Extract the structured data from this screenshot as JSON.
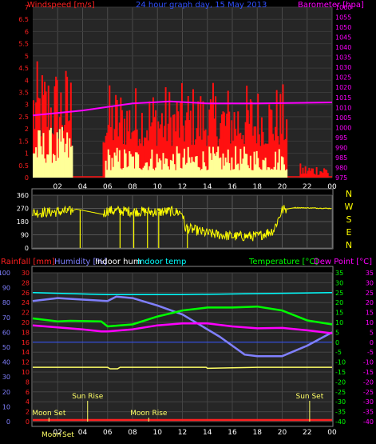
{
  "colors": {
    "background": "#000000",
    "wind_label": "#ff2020",
    "title": "#3050ff",
    "baro": "#ff00ff",
    "dir_axis": "#ffff00",
    "rain": "#ff2020",
    "humidity": "#8080ff",
    "indoor_hum": "#ffffff",
    "indoor_temp": "#00ffff",
    "temperature": "#00ff00",
    "dewpoint": "#ff00ff",
    "panel_bg": "#2a2a2a",
    "grid": "#555555"
  },
  "chart_data": [
    {
      "type": "area",
      "title": "24 hour graph day, 15 May 2013",
      "left_axis_label": "Windspeed [m/s]",
      "right_axis_label": "Barometer [hpa]",
      "x_ticks": [
        "02",
        "04",
        "06",
        "08",
        "10",
        "12",
        "14",
        "16",
        "18",
        "20",
        "22",
        "00"
      ],
      "left_ticks": [
        "0",
        "0.5",
        "1",
        "1.5",
        "2",
        "2.5",
        "3",
        "3.5",
        "4",
        "4.5",
        "5",
        "5.5",
        "6",
        "6.5",
        "7"
      ],
      "right_ticks": [
        "975",
        "980",
        "985",
        "990",
        "995",
        "1000",
        "1005",
        "1010",
        "1015",
        "1020",
        "1025",
        "1030",
        "1035",
        "1040",
        "1045",
        "1050",
        "1055",
        "1060"
      ],
      "ylim_left": [
        0,
        7
      ],
      "ylim_right": [
        975,
        1060
      ],
      "hours_range": [
        0,
        24
      ],
      "series": [
        {
          "role": "gust",
          "color": "#ff1010",
          "segments": [
            {
              "from": 0.0,
              "to": 3.1,
              "base": 1.5,
              "amp": 3.3
            },
            {
              "from": 5.6,
              "to": 20.4,
              "base": 1.3,
              "amp": 2.6
            },
            {
              "from": 21.4,
              "to": 23.7,
              "base": 0.1,
              "amp": 0.5
            }
          ]
        },
        {
          "role": "average",
          "color": "#ffff99",
          "segments": [
            {
              "from": 0.0,
              "to": 3.2,
              "base": 0.6,
              "amp": 1.5
            },
            {
              "from": 5.8,
              "to": 20.4,
              "base": 0.3,
              "amp": 1.0
            }
          ]
        },
        {
          "role": "barometer",
          "color": "#ff00ff",
          "x": [
            0,
            4,
            8,
            11,
            14,
            18,
            24
          ],
          "y": [
            1006,
            1008.5,
            1012,
            1013,
            1012,
            1012,
            1012.5
          ]
        }
      ]
    },
    {
      "type": "scatter",
      "compass_ticks": [
        "N",
        "W",
        "S",
        "E",
        "N"
      ],
      "degree_ticks": [
        "360",
        "270",
        "180",
        "90",
        "0"
      ],
      "ylim": [
        0,
        360
      ],
      "hours_range": [
        0,
        24
      ],
      "series": [
        {
          "role": "wind_direction",
          "color": "#ffff00",
          "x": [
            0,
            3,
            3.5,
            5.6,
            6,
            10,
            11,
            12,
            12.2,
            14,
            16,
            18,
            19.3,
            20,
            21,
            24
          ],
          "y": [
            240,
            250,
            265,
            230,
            255,
            245,
            250,
            240,
            140,
            100,
            80,
            80,
            120,
            260,
            275,
            270
          ]
        }
      ]
    },
    {
      "type": "line",
      "labels": {
        "rain": "Rainfall [mm]",
        "humidity": "Humidity [%]",
        "indoor_hum": "Indoor hum",
        "indoor_temp": "Indoor temp",
        "temperature": "Temperature [°C]",
        "dewpoint": "Dew Point [°C]"
      },
      "x_ticks": [
        "02",
        "04",
        "06",
        "08",
        "10",
        "12",
        "14",
        "16",
        "18",
        "20",
        "22",
        "00"
      ],
      "hum_ticks": [
        "0",
        "10",
        "20",
        "30",
        "40",
        "50",
        "60",
        "70",
        "80",
        "90",
        "100"
      ],
      "rain_ticks": [
        "0",
        "2",
        "4",
        "6",
        "8",
        "10",
        "12",
        "14",
        "16",
        "18",
        "20",
        "22",
        "24",
        "26",
        "28",
        "30"
      ],
      "temp_ticks": [
        "35",
        "30",
        "25",
        "20",
        "15",
        "10",
        "5",
        "0",
        "-5",
        "-10",
        "-15",
        "-20",
        "-25",
        "-30",
        "-35",
        "-40"
      ],
      "ylim_humidity": [
        0,
        100
      ],
      "ylim_temp": [
        -40,
        35
      ],
      "hours_range": [
        0,
        24
      ],
      "series": [
        {
          "role": "humidity",
          "color": "#8080ff",
          "x": [
            0,
            2,
            4,
            6,
            6.7,
            8,
            10,
            12,
            14,
            15,
            16,
            17,
            18,
            20,
            22,
            24
          ],
          "y": [
            81,
            83,
            82,
            81,
            84,
            83,
            78,
            72,
            62,
            57,
            51,
            45,
            44,
            44,
            51,
            60
          ]
        },
        {
          "role": "indoor_temp",
          "color": "#00ffff",
          "x": [
            0,
            6,
            12,
            18,
            24
          ],
          "y": [
            25,
            24,
            24,
            24.5,
            25
          ]
        },
        {
          "role": "temperature",
          "color": "#00ff00",
          "x": [
            0,
            2,
            3,
            5.5,
            6,
            8,
            10,
            12,
            14,
            16,
            18,
            20,
            22,
            24
          ],
          "y": [
            12,
            10.5,
            10.8,
            10.5,
            8,
            9,
            13,
            16,
            17.5,
            17.5,
            18,
            16,
            11,
            9
          ]
        },
        {
          "role": "dewpoint",
          "color": "#ff00ff",
          "x": [
            0,
            2,
            4,
            5.5,
            6,
            8,
            10,
            12,
            14,
            16,
            18,
            20,
            22,
            24
          ],
          "y": [
            8.5,
            7.5,
            6.5,
            5.5,
            5.5,
            6.5,
            8.5,
            9.5,
            9.5,
            8,
            7,
            7.2,
            6,
            4.5
          ]
        },
        {
          "role": "indoor_hum",
          "color": "#ffff66",
          "x": [
            0,
            6,
            6.2,
            6.8,
            7,
            13.9,
            14,
            18,
            24
          ],
          "y": [
            36.5,
            36.5,
            35.5,
            35.5,
            36.5,
            36.5,
            35.8,
            36.5,
            36.5
          ]
        },
        {
          "role": "rain",
          "color": "#ff2020",
          "x": [
            0,
            24
          ],
          "y": [
            0,
            0
          ]
        }
      ],
      "astro_events": [
        {
          "label": "Moon Set",
          "hour": 1.3,
          "level": "low"
        },
        {
          "label": "Sun Rise",
          "hour": 4.4,
          "level": "high"
        },
        {
          "label": "Moon Rise",
          "hour": 9.3,
          "level": "low"
        },
        {
          "label": "Sun Set",
          "hour": 22.2,
          "level": "high"
        }
      ],
      "bottom_event_labels": [
        "Moon",
        "Set"
      ]
    }
  ]
}
